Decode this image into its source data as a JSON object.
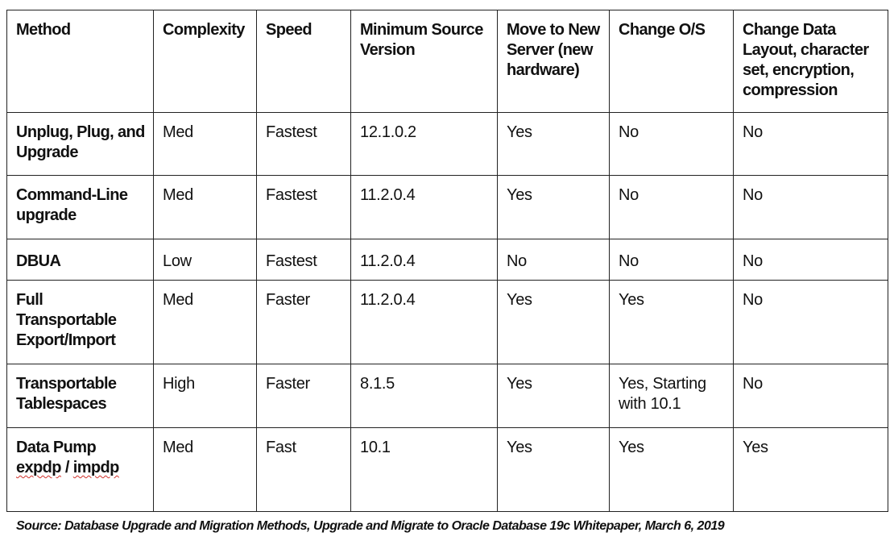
{
  "table": {
    "headers": [
      "Method",
      "Complexity",
      "Speed",
      "Minimum Source Version",
      "Move to New Server (new hardware)",
      "Change O/S",
      "Change Data Layout, character set, encryption, compression"
    ],
    "rows": [
      {
        "method": "Unplug, Plug, and Upgrade",
        "complexity": "Med",
        "speed": "Fastest",
        "min_version": "12.1.0.2",
        "move_server": "Yes",
        "change_os": "No",
        "change_layout": "No"
      },
      {
        "method": "Command-Line upgrade",
        "complexity": "Med",
        "speed": "Fastest",
        "min_version": "11.2.0.4",
        "move_server": "Yes",
        "change_os": "No",
        "change_layout": "No"
      },
      {
        "method": "DBUA",
        "complexity": "Low",
        "speed": "Fastest",
        "min_version": "11.2.0.4",
        "move_server": "No",
        "change_os": "No",
        "change_layout": "No"
      },
      {
        "method": "Full Transportable Export/Import",
        "complexity": "Med",
        "speed": "Faster",
        "min_version": "11.2.0.4",
        "move_server": "Yes",
        "change_os": "Yes",
        "change_layout": "No"
      },
      {
        "method": "Transportable Tablespaces",
        "complexity": "High",
        "speed": "Faster",
        "min_version": "8.1.5",
        "move_server": "Yes",
        "change_os": "Yes, Starting with 10.1",
        "change_layout": "No"
      },
      {
        "method_prefix": "Data Pump",
        "method_cmd1": "expdp",
        "method_sep": " / ",
        "method_cmd2": "impdp",
        "complexity": "Med",
        "speed": "Fast",
        "min_version": "10.1",
        "move_server": "Yes",
        "change_os": "Yes",
        "change_layout": "Yes"
      }
    ]
  },
  "source_note": "Source: Database Upgrade and Migration Methods, Upgrade and Migrate to Oracle Database 19c Whitepaper, March 6, 2019",
  "colors": {
    "border": "#222222",
    "text": "#111111",
    "spellcheck_underline": "#d0302a"
  }
}
